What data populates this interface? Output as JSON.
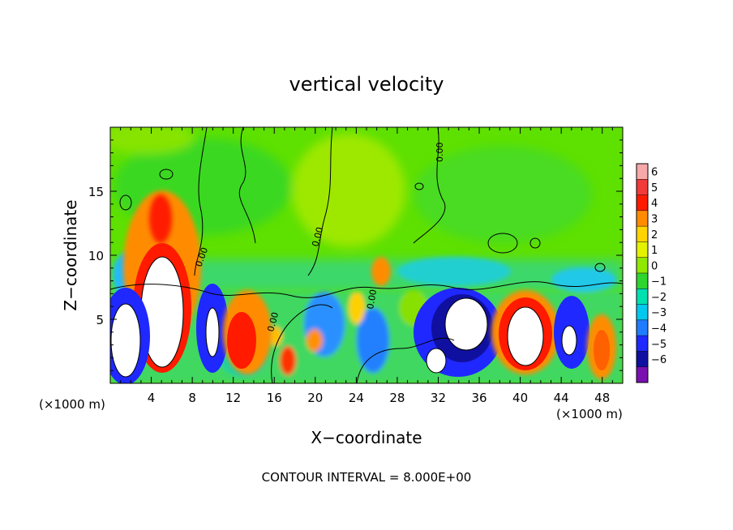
{
  "chart_data": {
    "type": "heatmap",
    "title": "vertical velocity",
    "xlabel": "X−coordinate",
    "ylabel": "Z−coordinate",
    "x_unit": "(×1000 m)",
    "z_unit": "(×1000 m)",
    "xlim": [
      0,
      50
    ],
    "ylim": [
      0,
      20
    ],
    "x_ticks": [
      4,
      8,
      12,
      16,
      20,
      24,
      28,
      32,
      36,
      40,
      44,
      48
    ],
    "y_ticks": [
      5,
      10,
      15
    ],
    "colorbar": {
      "labels": [
        "6",
        "5",
        "4",
        "3",
        "2",
        "1",
        "0",
        "−1",
        "−2",
        "−3",
        "−4",
        "−5",
        "−6"
      ],
      "colors": [
        "#f7a8a8",
        "#f23a3a",
        "#ff1a00",
        "#ff8c00",
        "#ffd400",
        "#e4f200",
        "#90e800",
        "#2ed52e",
        "#00e0b0",
        "#00c8ee",
        "#1f7bff",
        "#1f28ff",
        "#1010a0",
        "#7a10b0"
      ]
    },
    "features": [
      {
        "kind": "updraft",
        "x": 5.5,
        "z": 6.5,
        "peak": 8
      },
      {
        "kind": "downdraft",
        "x": 3.0,
        "z": 3.0,
        "peak": -7
      },
      {
        "kind": "downdraft",
        "x": 9.8,
        "z": 4.2,
        "peak": -6
      },
      {
        "kind": "updraft",
        "x": 13.0,
        "z": 4.0,
        "peak": 4.5
      },
      {
        "kind": "downdraft",
        "x": 33.8,
        "z": 4.0,
        "peak": -8
      },
      {
        "kind": "updraft",
        "x": 40.3,
        "z": 3.5,
        "peak": 9
      },
      {
        "kind": "downdraft",
        "x": 44.8,
        "z": 3.5,
        "peak": -5
      },
      {
        "kind": "updraft",
        "x": 47.8,
        "z": 3.0,
        "peak": 3.5
      }
    ],
    "contour_label": "0.00",
    "footer": "CONTOUR INTERVAL = 8.000E+00"
  }
}
